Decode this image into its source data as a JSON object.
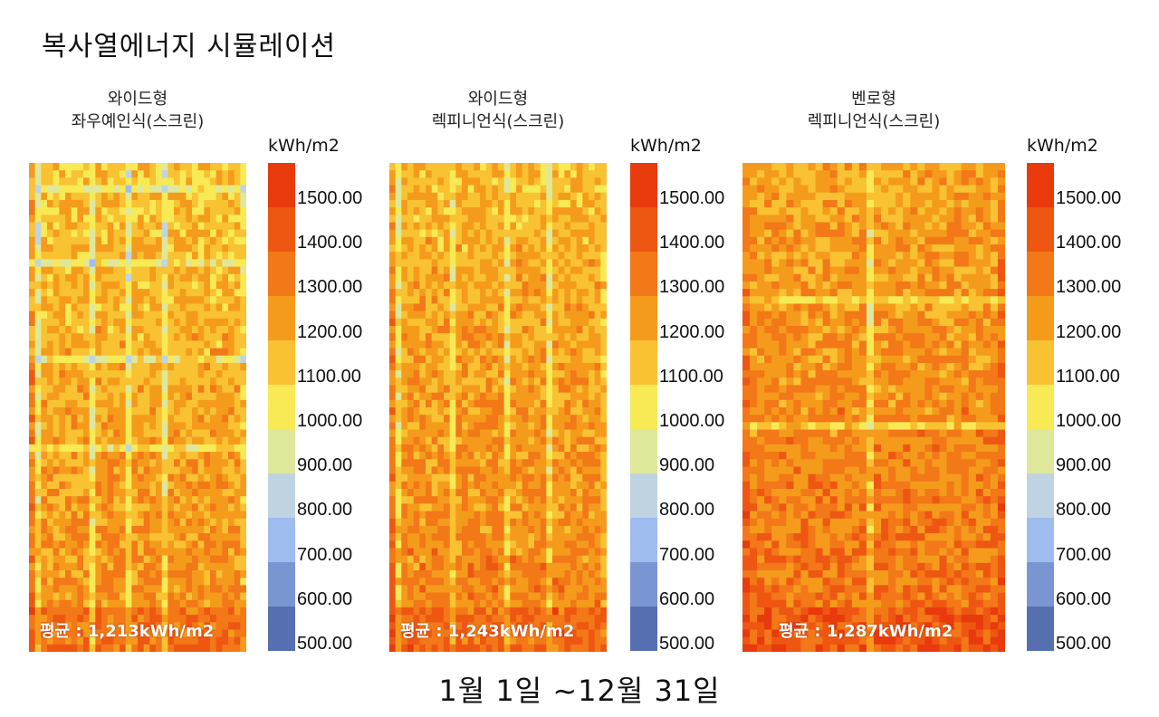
{
  "page_title": "복사열에너지 시뮬레이션",
  "footer": "1월 1일  ~12월 31일",
  "chart_data": [
    {
      "type": "heatmap",
      "title": "와이드형\n좌우예인식(스크린)",
      "title_lines": [
        "와이드형",
        "좌우예인식(스크린)"
      ],
      "unit": "kWh/m2",
      "average_label": "평균 : 1,213kWh/m2",
      "average_value": 1213,
      "grid": {
        "cols": 36,
        "rows": 66
      },
      "light_columns": [
        1,
        10,
        16,
        22,
        35
      ],
      "light_rows": [
        3,
        13,
        26,
        38
      ]
    },
    {
      "type": "heatmap",
      "title": "와이드형\n렉피니언식(스크린)",
      "title_lines": [
        "와이드형",
        "렉피니언식(스크린)"
      ],
      "unit": "kWh/m2",
      "average_label": "평균 : 1,243kWh/m2",
      "average_value": 1243,
      "grid": {
        "cols": 36,
        "rows": 66
      },
      "light_columns": [
        1,
        10,
        19,
        26,
        35
      ],
      "light_rows": []
    },
    {
      "type": "heatmap",
      "title": "벤로형\n렉피니언식(스크린)",
      "title_lines": [
        "벤로형",
        "렉피니언식(스크린)"
      ],
      "unit": "kWh/m2",
      "average_label": "평균 : 1,287kWh/m2",
      "average_value": 1287,
      "grid": {
        "cols": 36,
        "rows": 66
      },
      "light_columns": [
        17
      ],
      "light_rows": [
        18,
        35
      ]
    }
  ],
  "legend": {
    "unit": "kWh/m2",
    "tick_labels": [
      "1500.00",
      "1400.00",
      "1300.00",
      "1200.00",
      "1100.00",
      "1000.00",
      "900.00",
      "800.00",
      "700.00",
      "600.00",
      "500.00"
    ],
    "bins": [
      {
        "min": 1500,
        "max": 1600,
        "color": "#e83a0c"
      },
      {
        "min": 1400,
        "max": 1500,
        "color": "#ee5712"
      },
      {
        "min": 1300,
        "max": 1400,
        "color": "#f27818"
      },
      {
        "min": 1200,
        "max": 1300,
        "color": "#f59b1c"
      },
      {
        "min": 1100,
        "max": 1200,
        "color": "#f8c232"
      },
      {
        "min": 1000,
        "max": 1100,
        "color": "#f8ea55"
      },
      {
        "min": 900,
        "max": 1000,
        "color": "#dfe89a"
      },
      {
        "min": 800,
        "max": 900,
        "color": "#bfd4e0"
      },
      {
        "min": 700,
        "max": 800,
        "color": "#9fbcef"
      },
      {
        "min": 600,
        "max": 700,
        "color": "#7a96d2"
      },
      {
        "min": 500,
        "max": 600,
        "color": "#566fb0"
      }
    ]
  }
}
